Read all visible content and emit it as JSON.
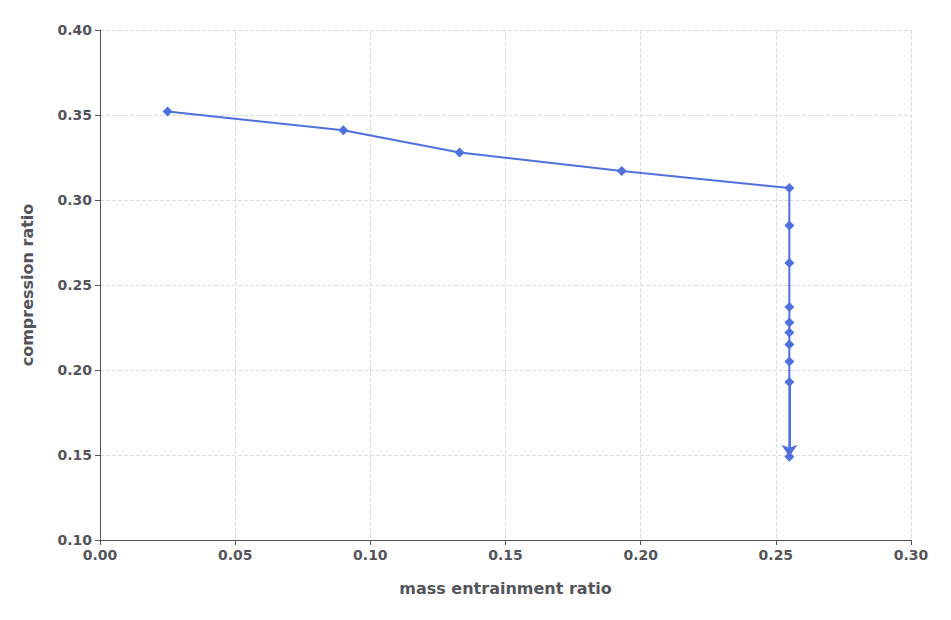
{
  "chart_data": {
    "type": "line",
    "xlabel": "mass entrainment ratio",
    "ylabel": "compression ratio",
    "x": [
      0.025,
      0.09,
      0.133,
      0.193,
      0.255,
      0.255,
      0.255,
      0.255,
      0.255,
      0.255,
      0.255,
      0.255,
      0.255,
      0.255
    ],
    "values": [
      0.352,
      0.341,
      0.328,
      0.317,
      0.307,
      0.285,
      0.263,
      0.237,
      0.228,
      0.222,
      0.215,
      0.205,
      0.193,
      0.149
    ],
    "xlim": [
      0.0,
      0.3
    ],
    "ylim": [
      0.1,
      0.4
    ],
    "xticks": [
      {
        "value": 0.0,
        "label": "0.00"
      },
      0.05,
      {
        "value": 0.1,
        "label": "0.10"
      },
      0.15,
      {
        "value": 0.2,
        "label": "0.20"
      },
      0.25,
      {
        "value": 0.3,
        "label": "0.30"
      }
    ],
    "yticks": [
      {
        "value": 0.1,
        "label": "0.10"
      },
      0.15,
      {
        "value": 0.2,
        "label": "0.20"
      },
      0.25,
      {
        "value": 0.3,
        "label": "0.30"
      },
      0.35,
      {
        "value": 0.4,
        "label": "0.40"
      }
    ],
    "grid": true,
    "marker": "diamond"
  }
}
